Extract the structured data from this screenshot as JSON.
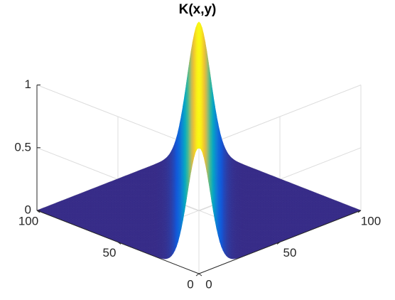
{
  "chart_data": {
    "type": "surface",
    "title": "K(x,y)",
    "function": "K(x,y) = exp(-((x - y)/10)^2)",
    "x": {
      "min": 0,
      "max": 100,
      "ticks": [
        0,
        50,
        100
      ],
      "tick_labels": [
        "0",
        "50",
        "100"
      ]
    },
    "y": {
      "min": 0,
      "max": 100,
      "ticks": [
        0,
        50,
        100
      ],
      "tick_labels": [
        "0",
        "50",
        "100"
      ]
    },
    "z": {
      "min": 0,
      "max": 1,
      "ticks": [
        0,
        0.5,
        1
      ],
      "tick_labels": [
        "0",
        "0.5",
        "1"
      ]
    },
    "mesh_resolution": 101,
    "colormap": "parula",
    "grid": true,
    "view": "3d-default"
  },
  "colors": {
    "grid": "#dcdcdc",
    "axis": "#262626",
    "background": "#ffffff"
  }
}
